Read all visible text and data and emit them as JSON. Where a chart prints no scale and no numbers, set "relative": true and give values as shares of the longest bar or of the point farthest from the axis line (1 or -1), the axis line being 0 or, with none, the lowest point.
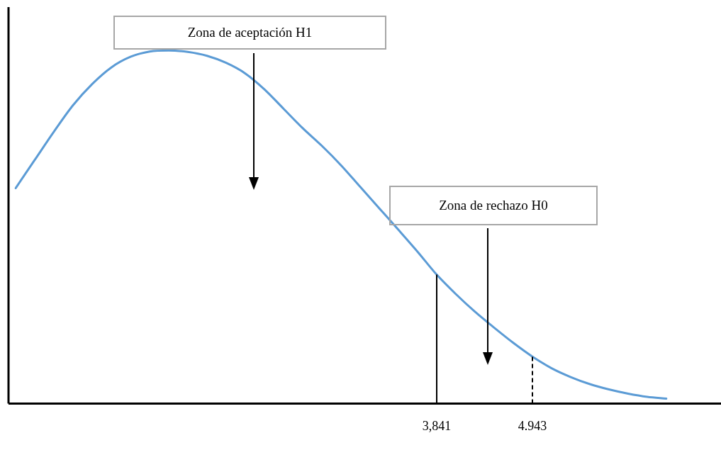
{
  "chart_data": {
    "type": "line",
    "relative": true,
    "marker": "none",
    "line_style": "solid",
    "grid": false,
    "legend": false,
    "categories": [
      null,
      null,
      null,
      null,
      null,
      null,
      null,
      null,
      null,
      null,
      null,
      null,
      null,
      null,
      null,
      null,
      null,
      null,
      null,
      null,
      null,
      null,
      "3,841",
      null,
      null,
      null,
      null,
      "4.943",
      null,
      null,
      null,
      null,
      null,
      null,
      null
    ],
    "series": [
      {
        "color": "#5b9bd5",
        "values": [
          0.61,
          0.69,
          0.77,
          0.845,
          0.905,
          0.952,
          0.982,
          0.997,
          1.0,
          0.996,
          0.985,
          0.965,
          0.935,
          0.89,
          0.835,
          0.78,
          0.73,
          0.675,
          0.614,
          0.553,
          0.492,
          0.43,
          0.365,
          0.31,
          0.26,
          0.215,
          0.172,
          0.133,
          0.1,
          0.075,
          0.055,
          0.04,
          0.028,
          0.019,
          0.014
        ]
      }
    ],
    "ref_lines": [
      {
        "axis": "x",
        "value": "3,841",
        "color": "#000000",
        "line_style": "solid"
      },
      {
        "axis": "x",
        "value": "4.943",
        "color": "#000000",
        "line_style": "dashed"
      }
    ],
    "annotations": [
      "Zona de aceptación H1",
      "Zona de rechazo H0"
    ]
  }
}
